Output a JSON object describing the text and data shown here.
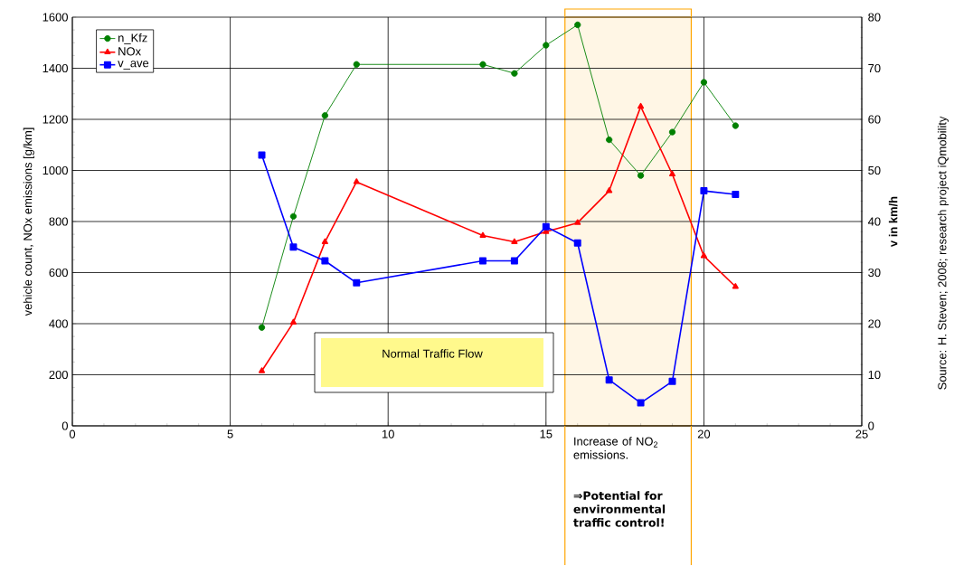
{
  "chart_data": {
    "type": "line",
    "xlabel": null,
    "ylabel": "vehicle count, NOx emissions [g/km]",
    "y2label": "v in km/h",
    "x": [
      6,
      7,
      8,
      9,
      13,
      14,
      15,
      16,
      17,
      18,
      19,
      20,
      21
    ],
    "series": [
      {
        "name": "n_Kfz",
        "color": "#008000",
        "marker": "circle",
        "values": [
          385,
          820,
          1215,
          1415,
          1415,
          1380,
          1490,
          1570,
          1120,
          980,
          1150,
          1345,
          1175
        ]
      },
      {
        "name": "NOx",
        "color": "#ff0000",
        "marker": "triangle",
        "values": [
          215,
          405,
          720,
          955,
          745,
          720,
          760,
          795,
          920,
          1250,
          985,
          665,
          545
        ]
      },
      {
        "name": "v_ave",
        "color": "#0000ff",
        "marker": "square",
        "axis": "y2",
        "values": [
          53,
          35,
          32.3,
          28,
          32.3,
          32.3,
          39,
          35.8,
          9,
          4.5,
          8.7,
          46,
          45.3
        ]
      }
    ],
    "xlim": [
      0,
      25
    ],
    "xticks": [
      0,
      5,
      10,
      15,
      20,
      25
    ],
    "ylim": [
      0,
      1600
    ],
    "yticks": [
      0,
      200,
      400,
      600,
      800,
      1000,
      1200,
      1400,
      1600
    ],
    "y2lim": [
      0,
      80
    ],
    "y2ticks": [
      0,
      10,
      20,
      30,
      40,
      50,
      60,
      70,
      80
    ],
    "grid": true,
    "legend": "top left",
    "line_style": "solid",
    "bands": [
      {
        "axis": "x",
        "from": 15.6,
        "to": 19.6,
        "color": "#ffa500"
      }
    ],
    "annotations": [
      "Normal Traffic Flow",
      "Increase of NO$_{2}$ emissions.",
      "⇒Potential for environmental traffic control!",
      "Source: H. Steven; 2008; research project iQmobility"
    ]
  }
}
